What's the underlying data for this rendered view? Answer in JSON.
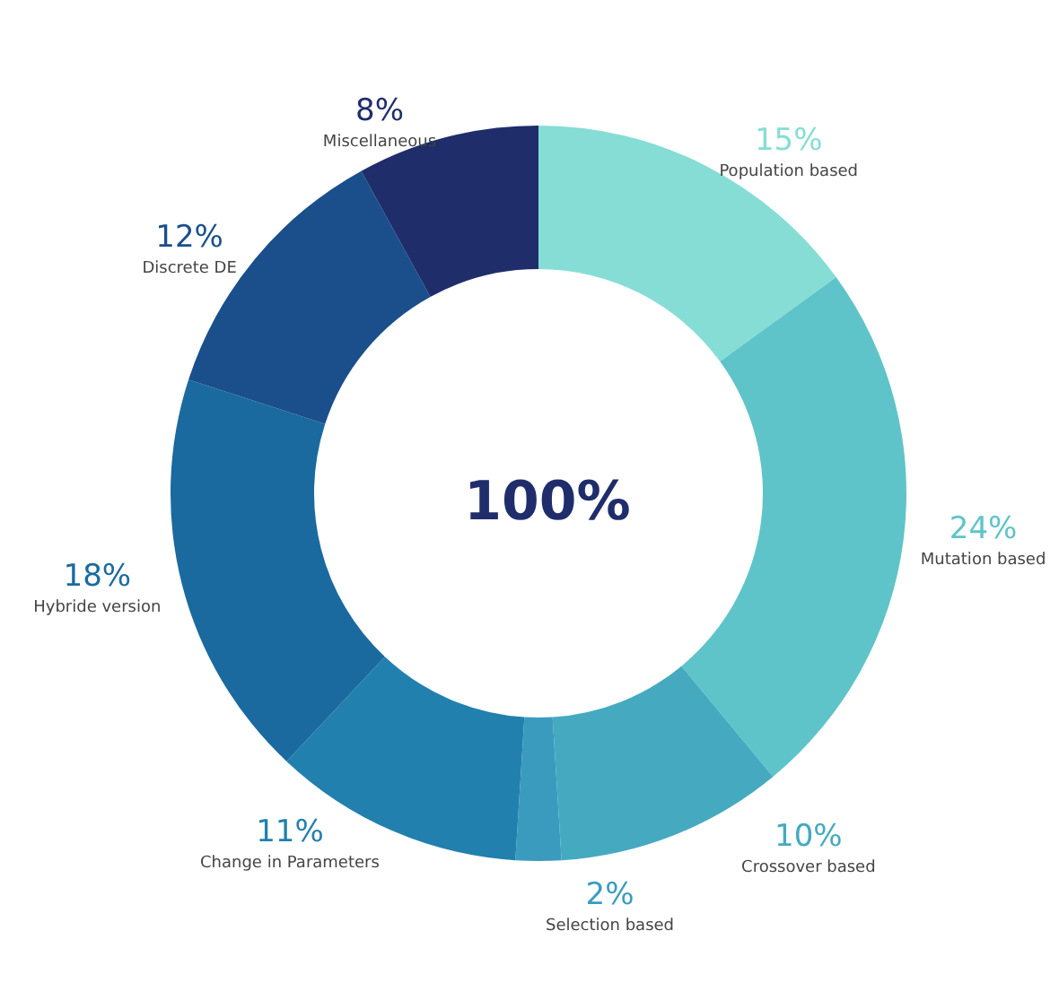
{
  "chart_data": {
    "type": "donut",
    "categories": [
      "Population based",
      "Mutation based",
      "Crossover based",
      "Selection based",
      "Change in Parameters",
      "Hybride version",
      "Discrete DE",
      "Miscellaneous"
    ],
    "values": [
      15,
      24,
      10,
      2,
      11,
      18,
      12,
      8
    ],
    "value_labels": [
      "15%",
      "24%",
      "10%",
      "2%",
      "11%",
      "18%",
      "12%",
      "8%"
    ],
    "colors": [
      "#86ddd5",
      "#5fc4c9",
      "#45aac0",
      "#3a9bbf",
      "#2280ae",
      "#1a6a9f",
      "#1a4f8c",
      "#1f2d6b"
    ],
    "annotations": [
      "100%"
    ],
    "legend": false
  }
}
